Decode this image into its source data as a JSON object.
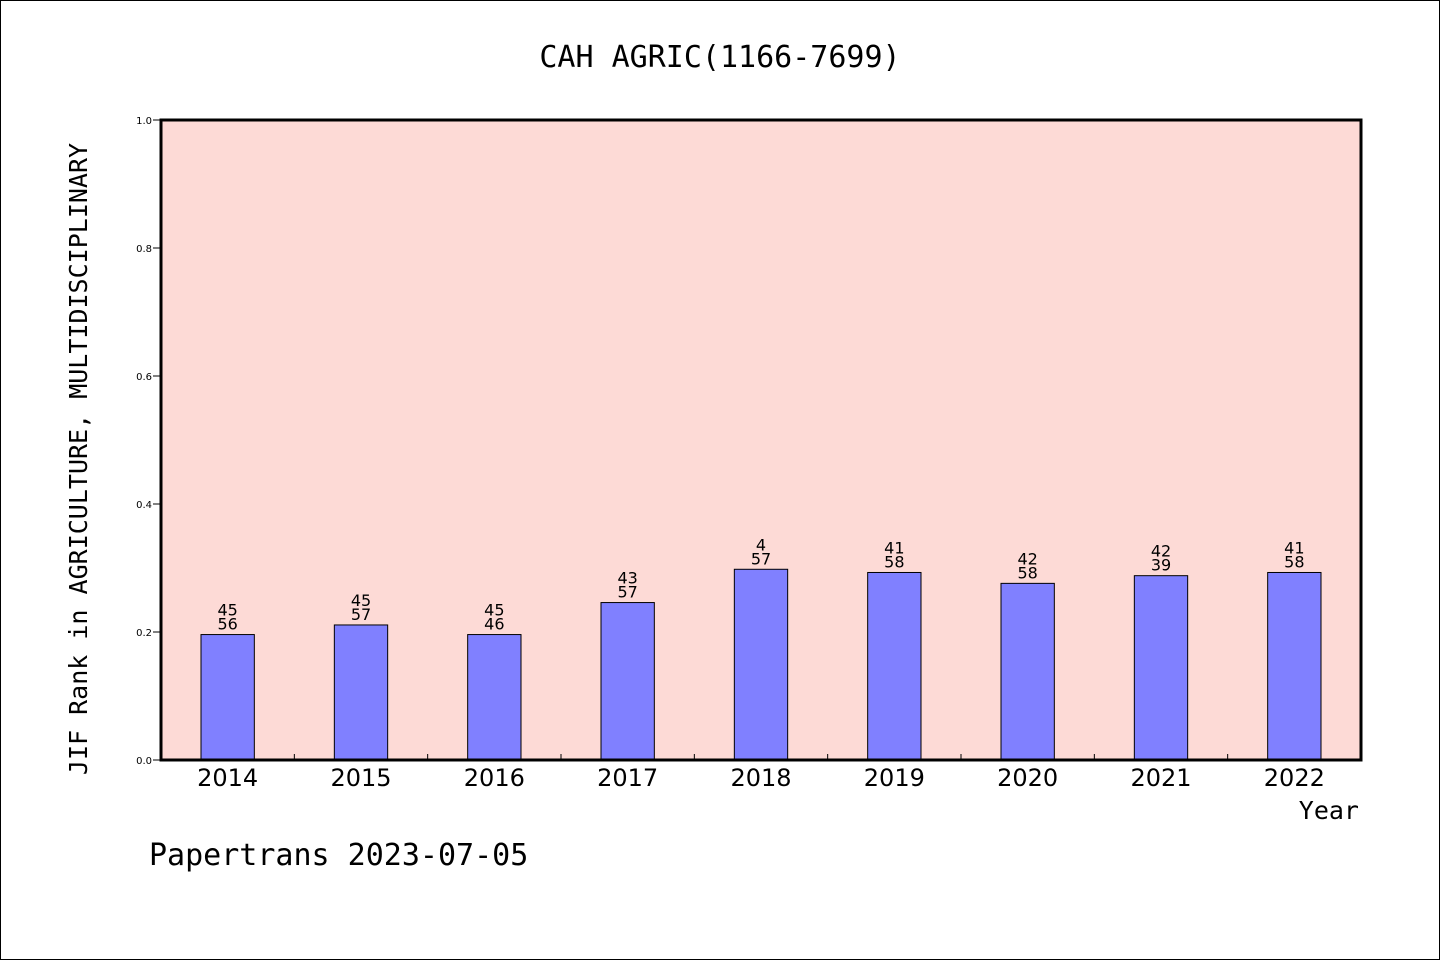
{
  "chart_data": {
    "type": "bar",
    "title": "CAH AGRIC(1166-7699)",
    "xlabel": "Year",
    "ylabel": "JIF Rank in AGRICULTURE, MULTIDISCIPLINARY",
    "ylim": [
      0.0,
      1.0
    ],
    "yticks": [
      "0.0",
      "0.2",
      "0.4",
      "0.6",
      "0.8",
      "1.0"
    ],
    "categories": [
      "2014",
      "2015",
      "2016",
      "2017",
      "2018",
      "2019",
      "2020",
      "2021",
      "2022"
    ],
    "values": [
      0.196,
      0.211,
      0.196,
      0.246,
      0.298,
      0.293,
      0.276,
      0.288,
      0.293
    ],
    "labels_top": [
      "45",
      "45",
      "45",
      "43",
      "4",
      "41",
      "42",
      "42",
      "41"
    ],
    "labels_bottom": [
      "56",
      "57",
      "46",
      "57",
      "57",
      "58",
      "58",
      "39",
      "58"
    ],
    "colors": {
      "plot_background": "#FDDAD6",
      "bar_fill": "#8080FF",
      "bar_stroke": "#000000"
    },
    "grid": false,
    "legend": "none"
  },
  "footer": "Papertrans 2023-07-05"
}
